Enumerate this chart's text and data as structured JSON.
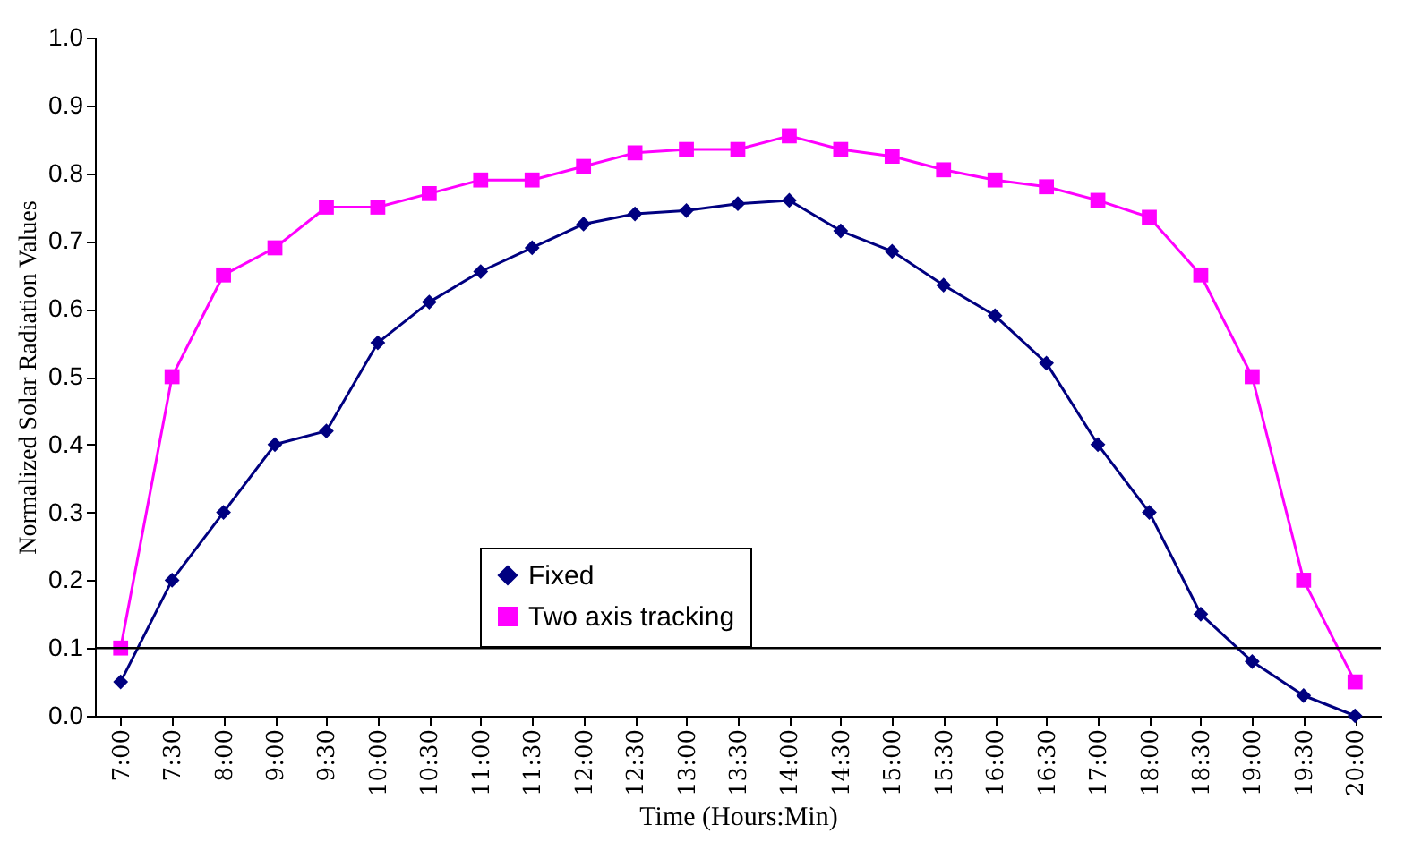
{
  "chart_data": {
    "type": "line",
    "xlabel": "Time (Hours:Min)",
    "ylabel": "Normalized Solar Radiation Values",
    "categories": [
      "7:00",
      "7:30",
      "8:00",
      "9:00",
      "9:30",
      "10:00",
      "10:30",
      "11:00",
      "11:30",
      "12:00",
      "12:30",
      "13:00",
      "13:30",
      "14:00",
      "14:30",
      "15:00",
      "15:30",
      "16:00",
      "16:30",
      "17:00",
      "18:00",
      "18:30",
      "19:00",
      "19:30",
      "20:00"
    ],
    "series": [
      {
        "name": "Fixed",
        "color": "#000080",
        "marker": "diamond",
        "values": [
          0.05,
          0.2,
          0.3,
          0.4,
          0.42,
          0.55,
          0.61,
          0.655,
          0.69,
          0.725,
          0.74,
          0.745,
          0.755,
          0.76,
          0.715,
          0.685,
          0.635,
          0.59,
          0.52,
          0.4,
          0.3,
          0.15,
          0.08,
          0.03,
          0.0
        ]
      },
      {
        "name": "Two axis tracking",
        "color": "#ff00ff",
        "marker": "square",
        "values": [
          0.1,
          0.5,
          0.65,
          0.69,
          0.75,
          0.75,
          0.77,
          0.79,
          0.79,
          0.81,
          0.83,
          0.835,
          0.835,
          0.855,
          0.835,
          0.825,
          0.805,
          0.79,
          0.78,
          0.76,
          0.735,
          0.65,
          0.5,
          0.2,
          0.05
        ]
      }
    ],
    "ylim": [
      0,
      1
    ],
    "yticks": [
      {
        "value": 0,
        "label": "0.0"
      },
      {
        "value": 0.1,
        "label": "0.1"
      },
      {
        "value": 0.2,
        "label": "0.2"
      },
      {
        "value": 0.3,
        "label": "0.3"
      },
      {
        "value": 0.4,
        "label": "0.4"
      },
      {
        "value": 0.5,
        "label": "0.5"
      },
      {
        "value": 0.6,
        "label": "0.6"
      },
      {
        "value": 0.7,
        "label": "0.7"
      },
      {
        "value": 0.8,
        "label": "0.8"
      },
      {
        "value": 0.9,
        "label": "0.9"
      },
      {
        "value": 1,
        "label": "1.0"
      }
    ],
    "ref_lines": [
      {
        "axis": "y",
        "value": 0.1,
        "color": "#000000"
      }
    ],
    "legend": "bottom",
    "line_style": "solid",
    "grid": false
  }
}
